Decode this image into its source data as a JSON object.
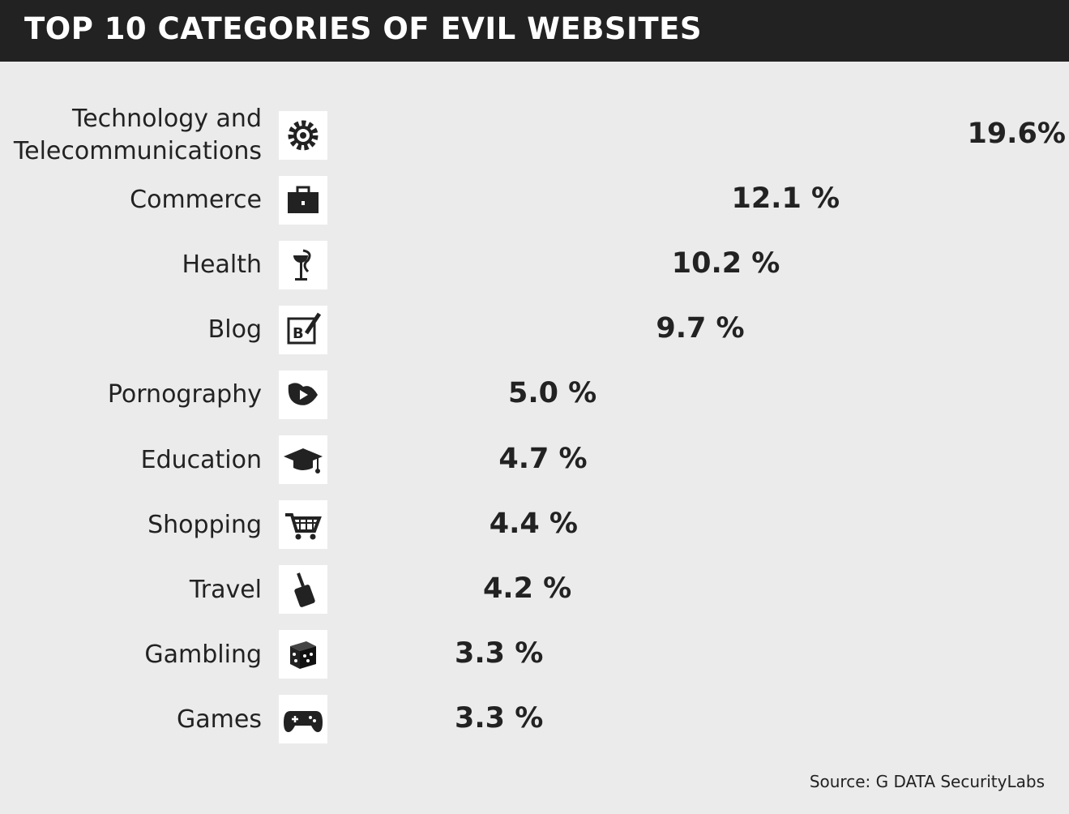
{
  "chart_data": {
    "type": "bar",
    "orientation": "horizontal",
    "title": "TOP 10 CATEGORIES OF EVIL WEBSITES",
    "categories": [
      "Technology and\nTelecommunications",
      "Commerce",
      "Health",
      "Blog",
      "Pornography",
      "Education",
      "Shopping",
      "Travel",
      "Gambling",
      "Games"
    ],
    "values": [
      19.6,
      12.1,
      10.2,
      9.7,
      5.0,
      4.7,
      4.4,
      4.2,
      3.3,
      3.3
    ],
    "value_labels": [
      "19.6%",
      "12.1 %",
      "10.2 %",
      "9.7 %",
      "5.0 %",
      "4.7 %",
      "4.4 %",
      "4.2 %",
      "3.3 %",
      "3.3 %"
    ],
    "color": "#c98540",
    "source": "Source: G DATA SecurityLabs"
  }
}
